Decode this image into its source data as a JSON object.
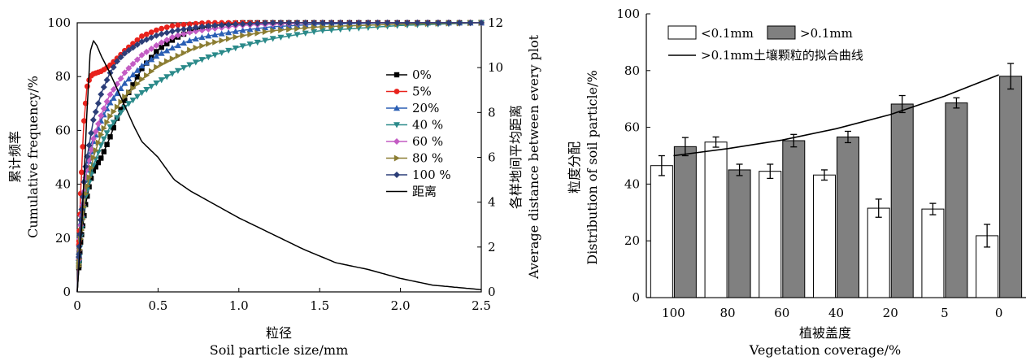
{
  "chart_data": [
    {
      "type": "line",
      "xlabel_cn": "粒径",
      "xlabel": "Soil particle size/mm",
      "ylabel_cn": "累计频率",
      "ylabel": "Cumulative frequency/%",
      "y2label_cn": "各样地间平均距离",
      "y2label": "Average distance between every plot",
      "xlim": [
        0,
        2.5
      ],
      "ylim": [
        0,
        100
      ],
      "y2lim": [
        0,
        12
      ],
      "xticks": [
        "0",
        "0.5",
        "1.0",
        "1.5",
        "2.0",
        "2.5"
      ],
      "yticks": [
        "0",
        "20",
        "40",
        "60",
        "80",
        "100"
      ],
      "y2ticks": [
        "0",
        "2",
        "4",
        "6",
        "8",
        "10",
        "12"
      ],
      "legend_position": "right",
      "series": [
        {
          "name": "0%",
          "color": "#000000",
          "marker": "square",
          "axis": "left",
          "x": [
            0,
            0.02,
            0.05,
            0.08,
            0.1,
            0.15,
            0.2,
            0.25,
            0.3,
            0.4,
            0.5,
            0.6,
            0.7,
            0.8,
            0.9,
            1.0,
            1.2,
            1.5,
            2.0,
            2.5
          ],
          "y": [
            0,
            18,
            32,
            41,
            45,
            50,
            57,
            65,
            72,
            83,
            90,
            94,
            97,
            98.5,
            99.5,
            100,
            100,
            100,
            100,
            100
          ]
        },
        {
          "name": "5%",
          "color": "#e8221c",
          "marker": "circle",
          "axis": "left",
          "x": [
            0,
            0.02,
            0.04,
            0.06,
            0.08,
            0.1,
            0.15,
            0.2,
            0.3,
            0.4,
            0.5,
            0.6,
            0.7,
            0.8,
            0.9,
            1.0,
            1.5,
            2.0,
            2.5
          ],
          "y": [
            0,
            35,
            62,
            76,
            80,
            81,
            82,
            84,
            90,
            95,
            97.5,
            99,
            99.5,
            100,
            100,
            100,
            100,
            100,
            100
          ]
        },
        {
          "name": "20%",
          "color": "#2b5fb4",
          "marker": "triangle",
          "axis": "left",
          "x": [
            0,
            0.02,
            0.05,
            0.1,
            0.15,
            0.2,
            0.3,
            0.4,
            0.5,
            0.6,
            0.7,
            0.8,
            1.0,
            1.2,
            1.5,
            2.0,
            2.5
          ],
          "y": [
            0,
            25,
            42,
            56,
            64,
            70,
            78,
            84,
            88,
            91,
            93.5,
            95,
            97,
            98.5,
            99.5,
            100,
            100
          ]
        },
        {
          "name": "40 %",
          "color": "#2b8a8a",
          "marker": "triangle-down",
          "axis": "left",
          "x": [
            0,
            0.02,
            0.05,
            0.1,
            0.15,
            0.2,
            0.3,
            0.4,
            0.5,
            0.6,
            0.7,
            0.8,
            1.0,
            1.2,
            1.5,
            2.0,
            2.5
          ],
          "y": [
            0,
            20,
            35,
            47,
            55,
            61,
            69,
            74,
            78,
            81.5,
            84.5,
            87,
            91,
            94,
            97,
            99,
            100
          ]
        },
        {
          "name": "60 %",
          "color": "#c45cc4",
          "marker": "diamond",
          "axis": "left",
          "x": [
            0,
            0.02,
            0.05,
            0.1,
            0.15,
            0.2,
            0.3,
            0.4,
            0.5,
            0.6,
            0.7,
            0.8,
            1.0,
            1.2,
            1.5,
            2.0,
            2.5
          ],
          "y": [
            0,
            24,
            42,
            57,
            66,
            73,
            82,
            88,
            92,
            95,
            96.5,
            97.5,
            99,
            99.5,
            100,
            100,
            100
          ]
        },
        {
          "name": "80 %",
          "color": "#8b7d32",
          "marker": "triangle-right",
          "axis": "left",
          "x": [
            0,
            0.02,
            0.05,
            0.1,
            0.15,
            0.2,
            0.3,
            0.4,
            0.5,
            0.6,
            0.7,
            0.8,
            1.0,
            1.2,
            1.5,
            2.0,
            2.5
          ],
          "y": [
            0,
            19,
            36,
            50,
            59,
            65,
            73,
            79,
            84,
            87,
            90,
            92,
            95,
            97,
            98.5,
            99.5,
            100
          ]
        },
        {
          "name": "100 %",
          "color": "#2c3e78",
          "marker": "diamond",
          "axis": "left",
          "x": [
            0,
            0.02,
            0.05,
            0.1,
            0.15,
            0.2,
            0.25,
            0.3,
            0.4,
            0.5,
            0.6,
            0.7,
            0.8,
            1.0,
            1.2,
            1.5,
            2.0,
            2.5
          ],
          "y": [
            0,
            26,
            46,
            64,
            74,
            81,
            86,
            89,
            93,
            95.5,
            97,
            98,
            98.8,
            99.5,
            100,
            100,
            100,
            100
          ]
        },
        {
          "name": "距离",
          "color": "#000000",
          "marker": "none",
          "axis": "right",
          "x": [
            0,
            0.03,
            0.06,
            0.08,
            0.1,
            0.12,
            0.15,
            0.2,
            0.25,
            0.3,
            0.35,
            0.4,
            0.5,
            0.6,
            0.7,
            0.8,
            1.0,
            1.2,
            1.4,
            1.6,
            1.8,
            2.0,
            2.2,
            2.5
          ],
          "y": [
            0,
            3.2,
            8.0,
            10.7,
            11.2,
            11.0,
            10.5,
            9.8,
            9.0,
            8.2,
            7.4,
            6.7,
            6.0,
            5.0,
            4.5,
            4.1,
            3.3,
            2.6,
            1.9,
            1.3,
            1.0,
            0.6,
            0.3,
            0.1
          ]
        }
      ]
    },
    {
      "type": "bar",
      "categories": [
        "100",
        "80",
        "60",
        "40",
        "20",
        "5",
        "0"
      ],
      "xlabel_cn": "植被盖度",
      "xlabel": "Vegetation coverage/%",
      "ylabel_cn": "粒度分配",
      "ylabel": "Distribution of soil particle/%",
      "ylim": [
        0,
        100
      ],
      "yticks": [
        "0",
        "20",
        "40",
        "60",
        "80",
        "100"
      ],
      "legend_position": "top-left",
      "series": [
        {
          "name": "<0.1mm",
          "color": "#ffffff",
          "values": [
            46.5,
            54.8,
            44.5,
            43.2,
            31.5,
            31.2,
            21.8
          ],
          "errors": [
            3.5,
            1.8,
            2.5,
            1.8,
            3.2,
            2.0,
            4.0
          ]
        },
        {
          "name": ">0.1mm",
          "color": "#808080",
          "values": [
            53.2,
            45.0,
            55.3,
            56.6,
            68.2,
            68.6,
            78.0
          ],
          "errors": [
            3.2,
            2.0,
            2.2,
            2.0,
            3.0,
            1.8,
            4.5
          ]
        },
        {
          "name": ">0.1mm土壤颗粒的拟合曲线",
          "color": "#000000",
          "type": "line",
          "values": [
            50.0,
            52.5,
            55.5,
            59.5,
            64.5,
            71.0,
            78.5
          ]
        }
      ]
    }
  ]
}
